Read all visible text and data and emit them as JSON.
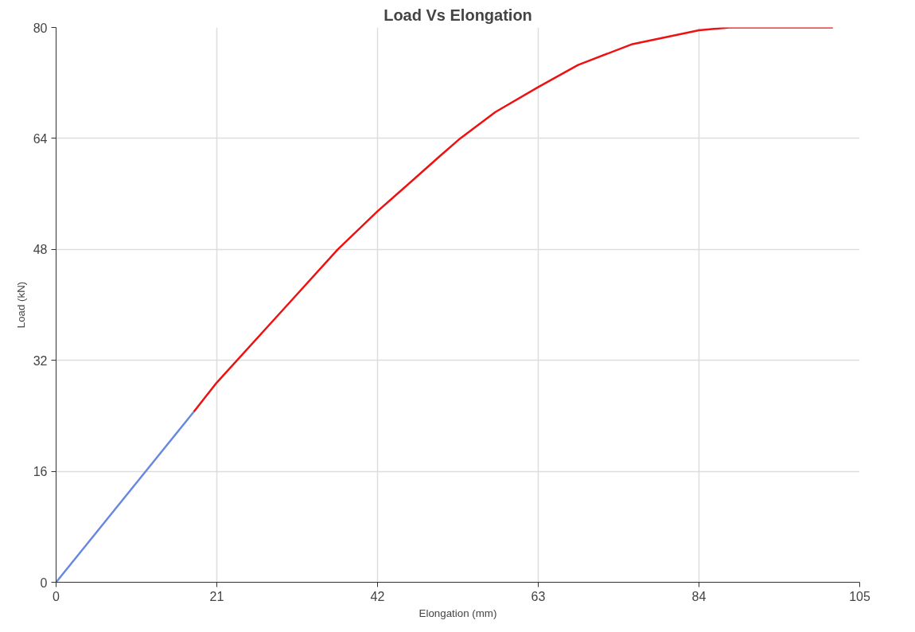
{
  "chart_data": {
    "type": "line",
    "title": "Load Vs Elongation",
    "xlabel": "Elongation (mm)",
    "ylabel": "Load (kN)",
    "xlim": [
      0,
      105
    ],
    "ylim": [
      0,
      80
    ],
    "xticks": [
      0,
      21,
      42,
      63,
      84,
      105
    ],
    "yticks": [
      0,
      16,
      32,
      48,
      64,
      80
    ],
    "grid": true,
    "line_style": "solid",
    "series": [
      {
        "color": "#6688dd",
        "x": [
          0,
          18
        ],
        "values": [
          0,
          24.6
        ]
      },
      {
        "color": "#ee1111",
        "x": [
          18,
          21,
          29.9,
          36.8,
          42,
          45.5,
          50.1,
          52.8,
          57.4,
          63,
          68.2,
          75.3,
          84,
          88,
          101.5
        ],
        "values": [
          24.6,
          28.8,
          39.6,
          48,
          53.5,
          56.9,
          61.4,
          64,
          67.8,
          71.4,
          74.6,
          77.6,
          79.6,
          80,
          80
        ]
      }
    ]
  }
}
